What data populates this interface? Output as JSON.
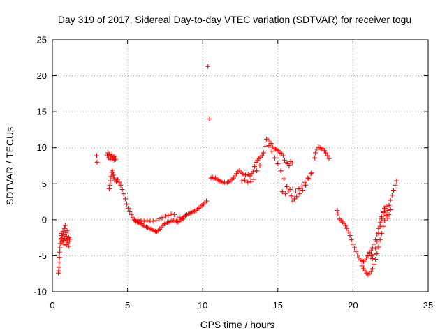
{
  "chart_data": {
    "type": "scatter",
    "title": "Day 319 of 2017, Sidereal Day-to-day VTEC variation (SDTVAR) for receiver togu",
    "xlabel": "GPS time / hours",
    "ylabel": "SDTVAR / TECUs",
    "xlim": [
      0,
      25
    ],
    "ylim": [
      -10,
      25
    ],
    "xticks": [
      0,
      5,
      10,
      15,
      20,
      25
    ],
    "yticks": [
      -10,
      -5,
      0,
      5,
      10,
      15,
      20,
      25
    ],
    "grid": true,
    "marker": "plus",
    "color": "#ff0000",
    "series": [
      {
        "name": "SDTVAR",
        "points": [
          [
            0.4,
            -7.4
          ],
          [
            0.42,
            -7.1
          ],
          [
            0.43,
            -6.6
          ],
          [
            0.45,
            -5.9
          ],
          [
            0.47,
            -5.2
          ],
          [
            0.48,
            -4.5
          ],
          [
            0.5,
            -3.9
          ],
          [
            0.52,
            -3.3
          ],
          [
            0.55,
            -2.7
          ],
          [
            0.58,
            -2.2
          ],
          [
            0.6,
            -1.9
          ],
          [
            0.62,
            -2.6
          ],
          [
            0.65,
            -3.1
          ],
          [
            0.68,
            -2.4
          ],
          [
            0.7,
            -1.6
          ],
          [
            0.72,
            -2.9
          ],
          [
            0.75,
            -3.4
          ],
          [
            0.78,
            -2.1
          ],
          [
            0.8,
            -1.2
          ],
          [
            0.82,
            -2.6
          ],
          [
            0.85,
            -0.8
          ],
          [
            0.88,
            -1.8
          ],
          [
            0.9,
            -2.9
          ],
          [
            0.93,
            -3.5
          ],
          [
            0.95,
            -2.3
          ],
          [
            0.98,
            -1.5
          ],
          [
            1.0,
            -2.8
          ],
          [
            1.02,
            -3.2
          ],
          [
            1.05,
            -2.0
          ],
          [
            1.08,
            -3.7
          ],
          [
            1.1,
            -2.5
          ],
          [
            1.12,
            -3.0
          ],
          [
            1.15,
            -2.7
          ],
          [
            2.95,
            8.9
          ],
          [
            2.97,
            8.0
          ],
          [
            3.65,
            9.0
          ],
          [
            3.7,
            9.3
          ],
          [
            3.75,
            8.6
          ],
          [
            3.8,
            9.1
          ],
          [
            3.85,
            8.4
          ],
          [
            3.9,
            8.8
          ],
          [
            3.95,
            9.0
          ],
          [
            4.0,
            8.5
          ],
          [
            4.05,
            8.7
          ],
          [
            4.1,
            8.3
          ],
          [
            4.15,
            8.8
          ],
          [
            4.2,
            8.4
          ],
          [
            3.78,
            4.3
          ],
          [
            3.82,
            4.8
          ],
          [
            3.86,
            5.4
          ],
          [
            3.9,
            6.0
          ],
          [
            3.94,
            6.6
          ],
          [
            3.98,
            6.9
          ],
          [
            4.02,
            6.6
          ],
          [
            4.06,
            6.2
          ],
          [
            4.1,
            5.8
          ],
          [
            4.15,
            5.5
          ],
          [
            4.25,
            5.3
          ],
          [
            4.35,
            5.6
          ],
          [
            4.45,
            5.2
          ],
          [
            4.55,
            4.8
          ],
          [
            4.65,
            4.2
          ],
          [
            4.75,
            3.6
          ],
          [
            4.85,
            2.9
          ],
          [
            4.95,
            2.2
          ],
          [
            5.05,
            1.6
          ],
          [
            5.15,
            1.1
          ],
          [
            5.25,
            0.7
          ],
          [
            5.35,
            0.3
          ],
          [
            5.45,
            0.0
          ],
          [
            5.55,
            -0.2
          ],
          [
            5.65,
            -0.3
          ],
          [
            5.75,
            -0.4
          ],
          [
            5.85,
            -0.5
          ],
          [
            5.95,
            -0.6
          ],
          [
            6.05,
            -0.8
          ],
          [
            6.15,
            -0.9
          ],
          [
            6.25,
            -1.0
          ],
          [
            6.35,
            -1.1
          ],
          [
            6.45,
            -1.2
          ],
          [
            6.55,
            -1.3
          ],
          [
            6.65,
            -1.4
          ],
          [
            6.75,
            -1.5
          ],
          [
            6.85,
            -1.6
          ],
          [
            6.95,
            -1.7
          ],
          [
            7.05,
            -1.5
          ],
          [
            7.15,
            -1.3
          ],
          [
            7.25,
            -1.0
          ],
          [
            7.35,
            -0.8
          ],
          [
            7.45,
            -0.6
          ],
          [
            7.55,
            -0.5
          ],
          [
            7.65,
            -0.4
          ],
          [
            7.75,
            -0.3
          ],
          [
            7.85,
            -0.2
          ],
          [
            7.95,
            -0.1
          ],
          [
            8.05,
            -0.1
          ],
          [
            8.15,
            -0.2
          ],
          [
            8.25,
            -0.2
          ],
          [
            8.35,
            -0.3
          ],
          [
            8.45,
            -0.2
          ],
          [
            5.5,
            -0.1
          ],
          [
            5.7,
            0.0
          ],
          [
            5.9,
            -0.1
          ],
          [
            6.1,
            -0.2
          ],
          [
            6.3,
            -0.1
          ],
          [
            6.5,
            -0.2
          ],
          [
            6.7,
            -0.2
          ],
          [
            6.9,
            -0.1
          ],
          [
            7.1,
            0.1
          ],
          [
            7.3,
            0.3
          ],
          [
            7.5,
            0.5
          ],
          [
            7.7,
            0.6
          ],
          [
            7.9,
            0.8
          ],
          [
            8.1,
            0.7
          ],
          [
            8.3,
            0.5
          ],
          [
            8.5,
            0.3
          ],
          [
            8.7,
            0.1
          ],
          [
            8.55,
            0.0
          ],
          [
            8.65,
            0.2
          ],
          [
            8.75,
            0.4
          ],
          [
            8.85,
            0.6
          ],
          [
            8.95,
            0.7
          ],
          [
            9.05,
            0.8
          ],
          [
            9.15,
            0.9
          ],
          [
            9.25,
            1.0
          ],
          [
            9.35,
            1.1
          ],
          [
            9.45,
            1.2
          ],
          [
            9.55,
            1.3
          ],
          [
            9.65,
            1.5
          ],
          [
            9.75,
            1.6
          ],
          [
            9.85,
            1.8
          ],
          [
            9.95,
            2.0
          ],
          [
            10.05,
            2.2
          ],
          [
            10.15,
            2.4
          ],
          [
            10.25,
            2.6
          ],
          [
            10.35,
            21.3
          ],
          [
            10.45,
            14.0
          ],
          [
            10.55,
            5.8
          ],
          [
            10.65,
            5.9
          ],
          [
            10.75,
            5.7
          ],
          [
            10.85,
            5.8
          ],
          [
            10.95,
            5.6
          ],
          [
            11.05,
            5.5
          ],
          [
            11.15,
            5.4
          ],
          [
            11.25,
            5.3
          ],
          [
            11.35,
            5.2
          ],
          [
            11.45,
            5.2
          ],
          [
            11.55,
            5.1
          ],
          [
            11.65,
            5.2
          ],
          [
            11.75,
            5.3
          ],
          [
            11.85,
            5.4
          ],
          [
            11.95,
            5.6
          ],
          [
            12.05,
            5.8
          ],
          [
            12.15,
            6.1
          ],
          [
            12.25,
            6.4
          ],
          [
            12.35,
            6.7
          ],
          [
            12.45,
            6.9
          ],
          [
            12.55,
            6.6
          ],
          [
            12.65,
            6.4
          ],
          [
            12.75,
            6.3
          ],
          [
            12.85,
            6.2
          ],
          [
            12.95,
            6.2
          ],
          [
            13.05,
            6.3
          ],
          [
            13.15,
            6.1
          ],
          [
            13.25,
            6.4
          ],
          [
            13.35,
            6.7
          ],
          [
            13.45,
            7.4
          ],
          [
            13.55,
            8.0
          ],
          [
            13.65,
            8.3
          ],
          [
            13.75,
            8.5
          ],
          [
            13.85,
            8.7
          ],
          [
            13.95,
            8.9
          ],
          [
            14.05,
            9.3
          ],
          [
            14.15,
            10.2
          ],
          [
            14.25,
            11.2
          ],
          [
            14.35,
            11.1
          ],
          [
            14.45,
            10.8
          ],
          [
            14.55,
            10.6
          ],
          [
            14.65,
            10.1
          ],
          [
            14.75,
            9.9
          ],
          [
            14.85,
            9.8
          ],
          [
            14.95,
            9.7
          ],
          [
            15.05,
            9.6
          ],
          [
            15.15,
            9.3
          ],
          [
            15.25,
            9.2
          ],
          [
            15.35,
            8.9
          ],
          [
            15.45,
            8.3
          ],
          [
            15.55,
            8.0
          ],
          [
            15.65,
            7.8
          ],
          [
            15.75,
            7.5
          ],
          [
            15.85,
            8.1
          ],
          [
            15.95,
            7.9
          ],
          [
            12.6,
            5.4
          ],
          [
            12.8,
            5.5
          ],
          [
            13.0,
            5.2
          ],
          [
            13.2,
            5.3
          ],
          [
            13.4,
            5.6
          ],
          [
            13.6,
            6.8
          ],
          [
            13.8,
            7.6
          ],
          [
            14.4,
            10.3
          ],
          [
            14.6,
            9.5
          ],
          [
            14.8,
            8.6
          ],
          [
            15.0,
            7.8
          ],
          [
            15.2,
            6.8
          ],
          [
            15.4,
            5.7
          ],
          [
            15.6,
            4.6
          ],
          [
            15.8,
            4.2
          ],
          [
            16.0,
            4.4
          ],
          [
            16.2,
            4.0
          ],
          [
            16.4,
            4.3
          ],
          [
            16.6,
            4.7
          ],
          [
            16.8,
            5.2
          ],
          [
            17.0,
            5.8
          ],
          [
            17.2,
            6.4
          ],
          [
            15.3,
            3.9
          ],
          [
            15.5,
            3.6
          ],
          [
            15.7,
            4.0
          ],
          [
            15.9,
            3.3
          ],
          [
            16.0,
            2.6
          ],
          [
            16.1,
            2.9
          ],
          [
            16.25,
            3.2
          ],
          [
            16.45,
            3.6
          ],
          [
            16.65,
            4.1
          ],
          [
            16.85,
            4.8
          ],
          [
            17.05,
            5.7
          ],
          [
            17.25,
            6.5
          ],
          [
            17.45,
            8.6
          ],
          [
            17.5,
            9.3
          ],
          [
            17.6,
            9.8
          ],
          [
            17.7,
            10.1
          ],
          [
            17.8,
            10.0
          ],
          [
            17.9,
            9.8
          ],
          [
            18.0,
            9.9
          ],
          [
            18.1,
            9.6
          ],
          [
            18.2,
            9.3
          ],
          [
            18.3,
            8.9
          ],
          [
            18.4,
            8.5
          ],
          [
            18.95,
            1.3
          ],
          [
            19.0,
            0.8
          ],
          [
            19.1,
            0.1
          ],
          [
            19.2,
            -0.1
          ],
          [
            19.3,
            -0.3
          ],
          [
            19.4,
            -0.5
          ],
          [
            19.5,
            -0.8
          ],
          [
            19.6,
            -1.2
          ],
          [
            19.7,
            -1.7
          ],
          [
            19.8,
            -2.2
          ],
          [
            19.9,
            -2.8
          ],
          [
            20.0,
            -3.4
          ],
          [
            20.1,
            -3.9
          ],
          [
            20.2,
            -4.4
          ],
          [
            20.3,
            -4.9
          ],
          [
            20.4,
            -5.3
          ],
          [
            20.5,
            -5.6
          ],
          [
            20.6,
            -5.7
          ],
          [
            20.7,
            -5.8
          ],
          [
            20.8,
            -5.6
          ],
          [
            20.9,
            -5.3
          ],
          [
            21.0,
            -5.0
          ],
          [
            21.1,
            -4.7
          ],
          [
            21.2,
            -4.3
          ],
          [
            21.3,
            -3.9
          ],
          [
            21.4,
            -3.4
          ],
          [
            21.5,
            -2.8
          ],
          [
            21.6,
            -2.0
          ],
          [
            21.7,
            -1.2
          ],
          [
            21.8,
            -0.4
          ],
          [
            21.9,
            0.4
          ],
          [
            22.0,
            1.1
          ],
          [
            22.1,
            1.6
          ],
          [
            22.2,
            1.9
          ],
          [
            20.6,
            -6.4
          ],
          [
            20.7,
            -6.8
          ],
          [
            20.8,
            -7.1
          ],
          [
            20.9,
            -7.4
          ],
          [
            21.0,
            -7.6
          ],
          [
            21.1,
            -7.5
          ],
          [
            21.2,
            -7.2
          ],
          [
            21.3,
            -6.8
          ],
          [
            21.4,
            -6.2
          ],
          [
            21.5,
            -5.5
          ],
          [
            21.6,
            -4.7
          ],
          [
            21.7,
            -3.8
          ],
          [
            21.8,
            -2.8
          ],
          [
            21.9,
            -1.9
          ],
          [
            22.0,
            -0.9
          ],
          [
            22.1,
            -0.1
          ],
          [
            22.2,
            0.6
          ],
          [
            22.3,
            1.3
          ],
          [
            22.4,
            2.0
          ],
          [
            22.5,
            2.7
          ],
          [
            22.6,
            3.4
          ],
          [
            22.7,
            4.1
          ],
          [
            22.8,
            4.8
          ],
          [
            22.9,
            5.4
          ],
          [
            21.1,
            -4.5
          ],
          [
            21.2,
            -5.0
          ],
          [
            21.3,
            -5.4
          ],
          [
            21.4,
            -4.8
          ],
          [
            21.5,
            -4.0
          ],
          [
            21.6,
            -3.0
          ],
          [
            21.7,
            -1.9
          ],
          [
            21.8,
            -0.9
          ],
          [
            21.9,
            0.1
          ],
          [
            22.0,
            1.0
          ],
          [
            22.1,
            1.5
          ],
          [
            22.2,
            0.8
          ],
          [
            22.3,
            0.2
          ],
          [
            22.4,
            0.7
          ],
          [
            22.5,
            1.4
          ]
        ]
      }
    ]
  }
}
